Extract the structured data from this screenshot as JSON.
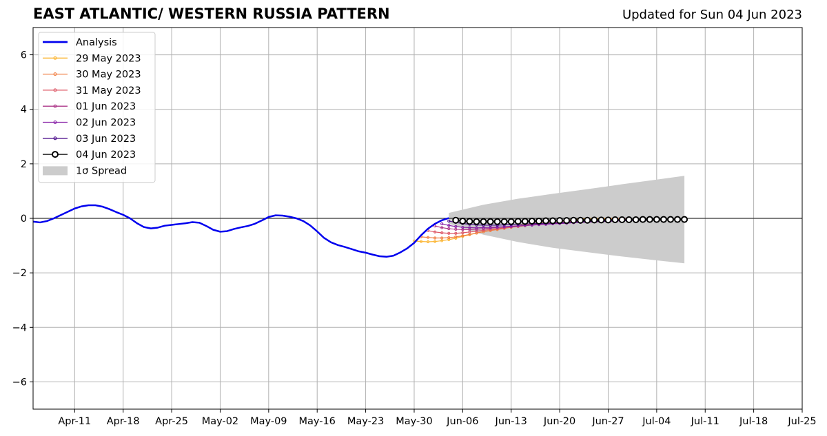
{
  "title": "EAST ATLANTIC/ WESTERN RUSSIA PATTERN",
  "updated": "Updated for Sun 04 Jun 2023",
  "chart_data": {
    "type": "line",
    "x_tick_labels": [
      "Apr-11",
      "Apr-18",
      "Apr-25",
      "May-02",
      "May-09",
      "May-16",
      "May-23",
      "May-30",
      "Jun-06",
      "Jun-13",
      "Jun-20",
      "Jun-27",
      "Jul-04",
      "Jul-11",
      "Jul-18",
      "Jul-25"
    ],
    "x_tick_dates": [
      "2023-04-11",
      "2023-04-18",
      "2023-04-25",
      "2023-05-02",
      "2023-05-09",
      "2023-05-16",
      "2023-05-23",
      "2023-05-30",
      "2023-06-06",
      "2023-06-13",
      "2023-06-20",
      "2023-06-27",
      "2023-07-04",
      "2023-07-11",
      "2023-07-18",
      "2023-07-25"
    ],
    "xlim": [
      "2023-04-05",
      "2023-07-25"
    ],
    "ylim": [
      -7,
      7
    ],
    "y_ticks": [
      -6,
      -4,
      -2,
      0,
      2,
      4,
      6
    ],
    "y_tick_labels": [
      "−6",
      "−4",
      "−2",
      "0",
      "2",
      "4",
      "6"
    ],
    "grid": true,
    "legend_placement": "top-left",
    "zero_line": true,
    "analysis": {
      "name": "Analysis",
      "color": "#0000ee",
      "x": [
        "2023-04-05",
        "2023-04-06",
        "2023-04-07",
        "2023-04-08",
        "2023-04-09",
        "2023-04-10",
        "2023-04-11",
        "2023-04-12",
        "2023-04-13",
        "2023-04-14",
        "2023-04-15",
        "2023-04-16",
        "2023-04-17",
        "2023-04-18",
        "2023-04-19",
        "2023-04-20",
        "2023-04-21",
        "2023-04-22",
        "2023-04-23",
        "2023-04-24",
        "2023-04-25",
        "2023-04-26",
        "2023-04-27",
        "2023-04-28",
        "2023-04-29",
        "2023-04-30",
        "2023-05-01",
        "2023-05-02",
        "2023-05-03",
        "2023-05-04",
        "2023-05-05",
        "2023-05-06",
        "2023-05-07",
        "2023-05-08",
        "2023-05-09",
        "2023-05-10",
        "2023-05-11",
        "2023-05-12",
        "2023-05-13",
        "2023-05-14",
        "2023-05-15",
        "2023-05-16",
        "2023-05-17",
        "2023-05-18",
        "2023-05-19",
        "2023-05-20",
        "2023-05-21",
        "2023-05-22",
        "2023-05-23",
        "2023-05-24",
        "2023-05-25",
        "2023-05-26",
        "2023-05-27",
        "2023-05-28",
        "2023-05-29",
        "2023-05-30",
        "2023-05-31",
        "2023-06-01",
        "2023-06-02",
        "2023-06-03",
        "2023-06-04"
      ],
      "y": [
        -0.12,
        -0.15,
        -0.1,
        0.0,
        0.12,
        0.24,
        0.36,
        0.44,
        0.48,
        0.48,
        0.43,
        0.34,
        0.23,
        0.13,
        0.0,
        -0.18,
        -0.32,
        -0.37,
        -0.34,
        -0.27,
        -0.24,
        -0.21,
        -0.18,
        -0.14,
        -0.16,
        -0.28,
        -0.42,
        -0.49,
        -0.47,
        -0.39,
        -0.33,
        -0.28,
        -0.2,
        -0.08,
        0.05,
        0.11,
        0.1,
        0.06,
        0.0,
        -0.1,
        -0.26,
        -0.48,
        -0.72,
        -0.88,
        -0.98,
        -1.05,
        -1.13,
        -1.21,
        -1.26,
        -1.33,
        -1.39,
        -1.41,
        -1.37,
        -1.25,
        -1.1,
        -0.9,
        -0.62,
        -0.38,
        -0.2,
        -0.07,
        0.01
      ]
    },
    "spread": {
      "name": "1σ Spread",
      "color": "#cccccc",
      "x": [
        "2023-06-04",
        "2023-06-09",
        "2023-06-14",
        "2023-06-19",
        "2023-06-24",
        "2023-06-29",
        "2023-07-04",
        "2023-07-08"
      ],
      "upper": [
        0.2,
        0.5,
        0.72,
        0.9,
        1.07,
        1.25,
        1.42,
        1.56
      ],
      "lower": [
        -0.2,
        -0.6,
        -0.87,
        -1.08,
        -1.24,
        -1.4,
        -1.54,
        -1.65
      ]
    },
    "series": [
      {
        "name": "29 May 2023",
        "color": "#fbb532",
        "start": "2023-05-30",
        "y": [
          -0.83,
          -0.85,
          -0.86,
          -0.85,
          -0.82,
          -0.78,
          -0.73,
          -0.66,
          -0.6,
          -0.54,
          -0.49,
          -0.44,
          -0.39,
          -0.35,
          -0.31,
          -0.27,
          -0.24,
          -0.2,
          -0.17,
          -0.14,
          -0.11,
          -0.08,
          -0.06,
          -0.04,
          -0.02,
          -0.01,
          0.0,
          0.0,
          0.0,
          0.0
        ]
      },
      {
        "name": "30 May 2023",
        "color": "#f07f43",
        "start": "2023-05-31",
        "y": [
          -0.68,
          -0.7,
          -0.72,
          -0.72,
          -0.71,
          -0.68,
          -0.64,
          -0.59,
          -0.54,
          -0.49,
          -0.45,
          -0.41,
          -0.37,
          -0.33,
          -0.3,
          -0.27,
          -0.24,
          -0.21,
          -0.18,
          -0.16,
          -0.13,
          -0.11,
          -0.09,
          -0.07,
          -0.05,
          -0.04,
          -0.03,
          -0.02,
          -0.01,
          0.0
        ]
      },
      {
        "name": "31 May 2023",
        "color": "#dd5766",
        "start": "2023-06-01",
        "y": [
          -0.45,
          -0.5,
          -0.53,
          -0.55,
          -0.55,
          -0.53,
          -0.5,
          -0.47,
          -0.44,
          -0.41,
          -0.38,
          -0.35,
          -0.32,
          -0.29,
          -0.27,
          -0.24,
          -0.22,
          -0.19,
          -0.17,
          -0.15,
          -0.13,
          -0.11,
          -0.1,
          -0.08,
          -0.07,
          -0.06,
          -0.05,
          -0.04,
          -0.03,
          -0.02
        ]
      },
      {
        "name": "01 Jun 2023",
        "color": "#ad3688",
        "start": "2023-06-02",
        "y": [
          -0.28,
          -0.34,
          -0.38,
          -0.4,
          -0.41,
          -0.41,
          -0.4,
          -0.38,
          -0.36,
          -0.34,
          -0.32,
          -0.3,
          -0.28,
          -0.26,
          -0.24,
          -0.22,
          -0.2,
          -0.18,
          -0.16,
          -0.15,
          -0.13,
          -0.12,
          -0.11,
          -0.1,
          -0.09,
          -0.08,
          -0.07,
          -0.06,
          -0.05,
          -0.05
        ]
      },
      {
        "name": "02 Jun 2023",
        "color": "#861fa6",
        "start": "2023-06-03",
        "y": [
          -0.2,
          -0.26,
          -0.3,
          -0.33,
          -0.34,
          -0.35,
          -0.34,
          -0.33,
          -0.32,
          -0.31,
          -0.29,
          -0.28,
          -0.26,
          -0.25,
          -0.23,
          -0.22,
          -0.2,
          -0.19,
          -0.18,
          -0.16,
          -0.15,
          -0.14,
          -0.13,
          -0.12,
          -0.11,
          -0.1,
          -0.09,
          -0.08,
          -0.07,
          -0.07
        ]
      },
      {
        "name": "03 Jun 2023",
        "color": "#4b0c8b",
        "start": "2023-06-04",
        "y": [
          -0.1,
          -0.15,
          -0.19,
          -0.22,
          -0.24,
          -0.25,
          -0.25,
          -0.25,
          -0.24,
          -0.23,
          -0.22,
          -0.21,
          -0.2,
          -0.19,
          -0.18,
          -0.17,
          -0.16,
          -0.15,
          -0.14,
          -0.13,
          -0.12,
          -0.11,
          -0.1,
          -0.1,
          -0.09,
          -0.08,
          -0.08,
          -0.07,
          -0.07,
          -0.06
        ]
      },
      {
        "name": "04 Jun 2023",
        "color": "#000000",
        "start": "2023-06-05",
        "marker": "open-circle",
        "y": [
          -0.07,
          -0.1,
          -0.11,
          -0.12,
          -0.12,
          -0.12,
          -0.12,
          -0.12,
          -0.12,
          -0.11,
          -0.11,
          -0.1,
          -0.1,
          -0.09,
          -0.09,
          -0.08,
          -0.08,
          -0.07,
          -0.07,
          -0.07,
          -0.06,
          -0.06,
          -0.06,
          -0.05,
          -0.05,
          -0.05,
          -0.05,
          -0.04,
          -0.04,
          -0.04,
          -0.04,
          -0.04,
          -0.04,
          -0.04
        ]
      }
    ]
  }
}
